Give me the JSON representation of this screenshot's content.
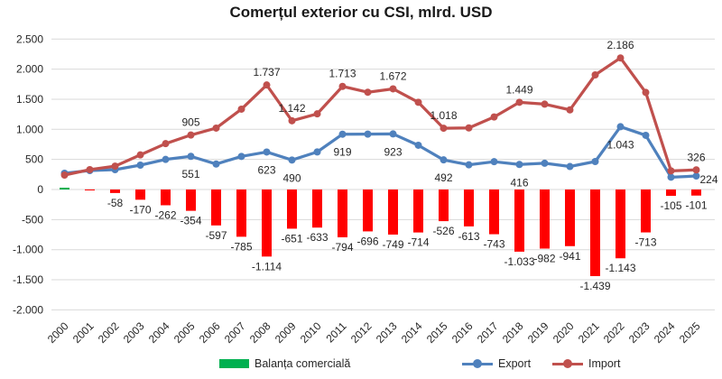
{
  "title": "Comerțul exterior cu CSI, mlrd. USD",
  "legend": [
    {
      "label": "Balanța comercială",
      "type": "bar",
      "color": "#00B050"
    },
    {
      "label": "Export",
      "type": "line",
      "color": "#4F81BD"
    },
    {
      "label": "Import",
      "type": "line",
      "color": "#C0504D"
    }
  ],
  "colors": {
    "bar_negative": "#FF0000",
    "bar_positive": "#00B050",
    "export_line": "#4F81BD",
    "import_line": "#C0504D",
    "grid": "#D9D9D9",
    "text": "#262626",
    "title_text": "#1a1a1a"
  },
  "chart_data": {
    "type": "combo: bar + 2 line series",
    "title": "Comerțul exterior cu CSI, mlrd. USD",
    "categories": [
      2000,
      2001,
      2002,
      2003,
      2004,
      2005,
      2006,
      2007,
      2008,
      2009,
      2010,
      2011,
      2012,
      2013,
      2014,
      2015,
      2016,
      2017,
      2018,
      2019,
      2020,
      2021,
      2022,
      2023,
      2024,
      2025
    ],
    "series": [
      {
        "name": "Balanța comercială",
        "type": "bar",
        "values": [
          30,
          -15,
          -58,
          -170,
          -262,
          -354,
          -597,
          -785,
          -1114,
          -651,
          -633,
          -794,
          -696,
          -749,
          -714,
          -526,
          -613,
          -743,
          -1033,
          -982,
          -941,
          -1439,
          -1143,
          -713,
          -105,
          -101
        ],
        "label_indices": [
          2,
          3,
          4,
          5,
          6,
          7,
          8,
          9,
          10,
          11,
          12,
          13,
          14,
          15,
          16,
          17,
          18,
          19,
          20,
          21,
          22,
          23,
          24,
          25
        ]
      },
      {
        "name": "Export",
        "type": "line",
        "values": [
          270,
          315,
          330,
          405,
          500,
          551,
          423,
          550,
          623,
          490,
          624,
          919,
          920,
          923,
          735,
          492,
          410,
          462,
          416,
          436,
          382,
          465,
          1043,
          900,
          205,
          224
        ],
        "label_indices": [
          5,
          8,
          9,
          11,
          13,
          15,
          18,
          22,
          25
        ]
      },
      {
        "name": "Import",
        "type": "line",
        "values": [
          240,
          330,
          388,
          575,
          762,
          905,
          1020,
          1335,
          1737,
          1142,
          1257,
          1713,
          1616,
          1672,
          1449,
          1018,
          1023,
          1205,
          1449,
          1418,
          1323,
          1904,
          2186,
          1613,
          310,
          326
        ],
        "label_indices": [
          5,
          8,
          9,
          11,
          13,
          15,
          18,
          22,
          25
        ]
      }
    ],
    "label_offsets": {
      "Export-2025": [
        14,
        8
      ]
    },
    "ylim": [
      -2000,
      2500
    ],
    "y_tick_values": [
      2500,
      2000,
      1500,
      1000,
      500,
      0,
      -500,
      -1000,
      -1500,
      -2000
    ],
    "grid": true,
    "legend_position": "bottom",
    "number_format": "thousands separated by dot, e.g. 1.737"
  }
}
